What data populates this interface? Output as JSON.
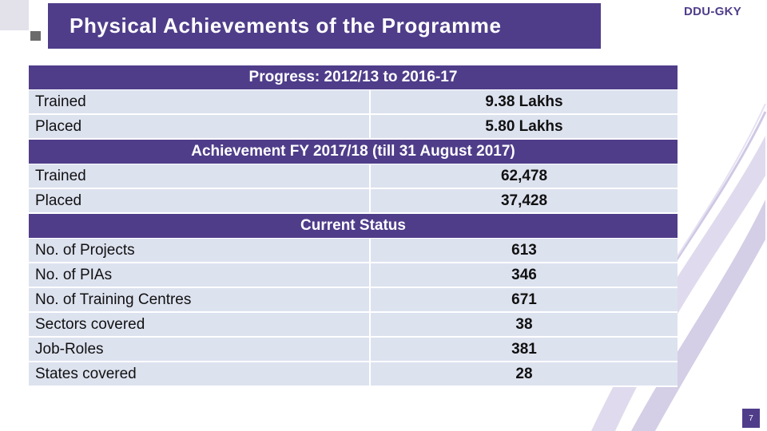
{
  "title": "Physical Achievements of the Programme",
  "brand": "DDU-GKY",
  "page_number": "7",
  "colors": {
    "accent": "#4f3d8a",
    "row_bg": "#dde2ef"
  },
  "sections": [
    {
      "heading": "Progress: 2012/13 to 2016-17",
      "rows": [
        {
          "label": "Trained",
          "value": "9.38 Lakhs"
        },
        {
          "label": "Placed",
          "value": "5.80 Lakhs"
        }
      ]
    },
    {
      "heading": "Achievement FY 2017/18 (till 31 August 2017)",
      "rows": [
        {
          "label": "Trained",
          "value": "62,478"
        },
        {
          "label": "Placed",
          "value": "37,428"
        }
      ]
    },
    {
      "heading": "Current Status",
      "rows": [
        {
          "label": "No. of Projects",
          "value": "613"
        },
        {
          "label": "No. of PIAs",
          "value": "346"
        },
        {
          "label": "No. of Training Centres",
          "value": "671"
        },
        {
          "label": "Sectors covered",
          "value": "38"
        },
        {
          "label": "Job-Roles",
          "value": "381"
        },
        {
          "label": "States covered",
          "value": "28"
        }
      ]
    }
  ]
}
